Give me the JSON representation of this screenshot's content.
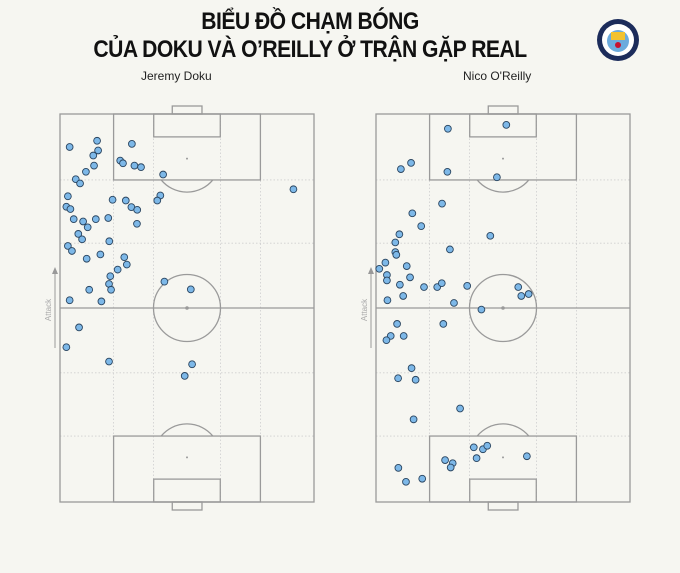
{
  "title": {
    "line1": "BIỂU ĐỒ CHẠM BÓNG",
    "line2": "CỦA DOKU VÀ O’REILLY Ở TRẬN GẶP REAL"
  },
  "logo": {
    "text": "MANCHESTER CITY",
    "colors": {
      "ring": "#1c2c5b",
      "sky": "#6cabdd"
    }
  },
  "attack_label": "Attack",
  "colors": {
    "background": "#f6f6f1",
    "pitch_lines": "#9a9a9a",
    "dot_fill": "#7db8e8",
    "dot_stroke": "#2a4560"
  },
  "chart_data": [
    {
      "type": "scatter",
      "title": "Jeremy Doku",
      "xlabel": "",
      "ylabel": "Attack",
      "xlim": [
        0,
        100
      ],
      "ylim": [
        0,
        100
      ],
      "grid": true,
      "points": [
        [
          3.8,
          91.5
        ],
        [
          14.6,
          93.1
        ],
        [
          15.0,
          90.6
        ],
        [
          13.1,
          89.3
        ],
        [
          13.4,
          86.7
        ],
        [
          10.2,
          85.1
        ],
        [
          6.2,
          83.2
        ],
        [
          7.9,
          82.1
        ],
        [
          28.3,
          92.3
        ],
        [
          23.7,
          88.0
        ],
        [
          24.8,
          87.3
        ],
        [
          29.3,
          86.7
        ],
        [
          31.9,
          86.3
        ],
        [
          40.6,
          84.4
        ],
        [
          91.9,
          80.6
        ],
        [
          3.1,
          78.8
        ],
        [
          2.5,
          76.1
        ],
        [
          4.1,
          75.5
        ],
        [
          20.7,
          77.9
        ],
        [
          25.9,
          77.7
        ],
        [
          28.1,
          76.0
        ],
        [
          30.4,
          75.3
        ],
        [
          39.5,
          79.0
        ],
        [
          38.3,
          77.7
        ],
        [
          5.4,
          72.9
        ],
        [
          9.1,
          72.3
        ],
        [
          10.9,
          70.8
        ],
        [
          14.1,
          72.9
        ],
        [
          19.0,
          73.2
        ],
        [
          30.3,
          71.7
        ],
        [
          7.2,
          69.1
        ],
        [
          8.7,
          67.7
        ],
        [
          19.4,
          67.2
        ],
        [
          3.1,
          66.0
        ],
        [
          4.7,
          64.7
        ],
        [
          10.5,
          62.7
        ],
        [
          15.9,
          63.8
        ],
        [
          25.3,
          63.1
        ],
        [
          26.3,
          61.2
        ],
        [
          22.7,
          59.9
        ],
        [
          19.8,
          58.2
        ],
        [
          19.3,
          56.2
        ],
        [
          20.1,
          54.7
        ],
        [
          11.5,
          54.7
        ],
        [
          41.1,
          56.8
        ],
        [
          51.5,
          54.8
        ],
        [
          3.8,
          52.0
        ],
        [
          16.3,
          51.7
        ],
        [
          7.5,
          45.0
        ],
        [
          2.5,
          39.9
        ],
        [
          19.3,
          36.2
        ],
        [
          52.0,
          35.5
        ],
        [
          49.1,
          32.5
        ]
      ]
    },
    {
      "type": "scatter",
      "title": "Nico O'Reilly",
      "xlabel": "",
      "ylabel": "Attack",
      "xlim": [
        0,
        100
      ],
      "ylim": [
        0,
        100
      ],
      "grid": true,
      "points": [
        [
          28.3,
          96.2
        ],
        [
          51.3,
          97.2
        ],
        [
          9.8,
          85.8
        ],
        [
          13.8,
          87.4
        ],
        [
          28.1,
          85.1
        ],
        [
          47.6,
          83.7
        ],
        [
          26.0,
          76.9
        ],
        [
          14.3,
          74.4
        ],
        [
          17.8,
          71.1
        ],
        [
          9.2,
          69.0
        ],
        [
          7.6,
          66.9
        ],
        [
          7.6,
          64.4
        ],
        [
          8.0,
          63.7
        ],
        [
          45.0,
          68.6
        ],
        [
          29.1,
          65.1
        ],
        [
          3.7,
          61.7
        ],
        [
          1.3,
          60.1
        ],
        [
          4.3,
          58.5
        ],
        [
          4.3,
          57.1
        ],
        [
          12.1,
          60.8
        ],
        [
          13.4,
          57.9
        ],
        [
          9.4,
          56.0
        ],
        [
          10.7,
          53.1
        ],
        [
          4.5,
          52.0
        ],
        [
          18.9,
          55.4
        ],
        [
          24.1,
          55.4
        ],
        [
          25.9,
          56.4
        ],
        [
          35.9,
          55.7
        ],
        [
          30.7,
          51.3
        ],
        [
          41.5,
          49.6
        ],
        [
          56.0,
          55.4
        ],
        [
          57.2,
          53.1
        ],
        [
          60.1,
          53.6
        ],
        [
          8.3,
          45.9
        ],
        [
          5.8,
          42.8
        ],
        [
          4.1,
          41.7
        ],
        [
          10.9,
          42.8
        ],
        [
          26.5,
          45.9
        ],
        [
          14.0,
          34.5
        ],
        [
          8.7,
          31.9
        ],
        [
          15.6,
          31.5
        ],
        [
          33.1,
          24.1
        ],
        [
          14.8,
          21.3
        ],
        [
          38.5,
          14.1
        ],
        [
          42.1,
          13.6
        ],
        [
          43.8,
          14.5
        ],
        [
          39.6,
          11.3
        ],
        [
          59.4,
          11.8
        ],
        [
          27.2,
          10.8
        ],
        [
          30.2,
          10.0
        ],
        [
          29.4,
          8.9
        ],
        [
          8.8,
          8.8
        ],
        [
          11.8,
          5.2
        ],
        [
          18.2,
          6.0
        ]
      ]
    }
  ]
}
